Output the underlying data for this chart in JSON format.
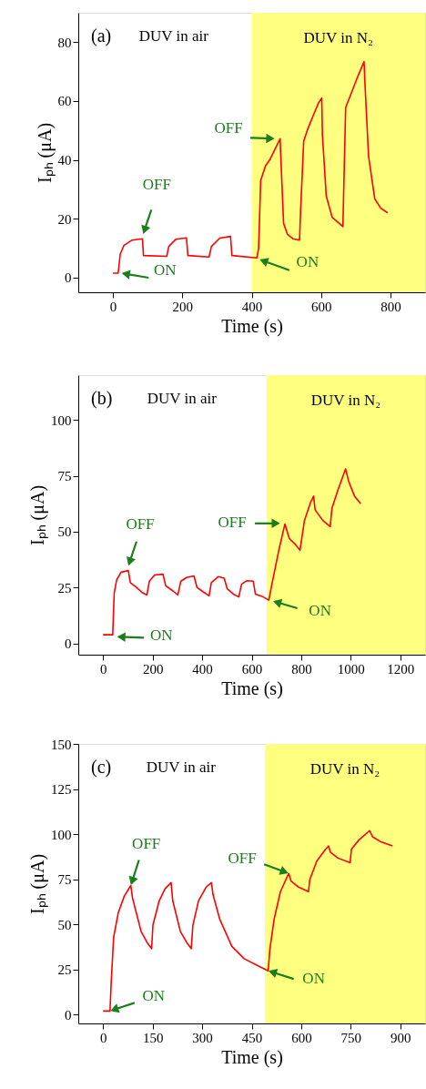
{
  "chart_data": [
    {
      "type": "line",
      "xlabel": "Time (s)",
      "ylabel": "Iₚₕ (μA)",
      "xlim": [
        -100,
        900
      ],
      "ylim": [
        -5,
        90
      ],
      "xticks": [
        0,
        200,
        400,
        600,
        800
      ],
      "yticks": [
        0,
        20,
        40,
        60,
        80
      ],
      "grid": false,
      "marker": "none",
      "line_style": "solid",
      "x": [
        0,
        15,
        21,
        32,
        54,
        85,
        88,
        155,
        161,
        181,
        212,
        216,
        277,
        284,
        308,
        339,
        343,
        415,
        420,
        426,
        440,
        453,
        482,
        484,
        492,
        503,
        519,
        538,
        541,
        550,
        562,
        580,
        593,
        602,
        604,
        615,
        632,
        663,
        665,
        671,
        685,
        702,
        724,
        727,
        737,
        755,
        772,
        792
      ],
      "series": [
        {
          "color": "#ff0000",
          "values": [
            1.5,
            1.5,
            8,
            11,
            12.7,
            13.2,
            7.5,
            7.2,
            10.6,
            13,
            13.5,
            7.5,
            7,
            10.6,
            13.4,
            14,
            7.5,
            6.7,
            10,
            33,
            38,
            40.2,
            47.2,
            41,
            18.4,
            14.7,
            13.2,
            12.7,
            22.5,
            46.4,
            50.6,
            55.8,
            59.4,
            61,
            48.5,
            27.7,
            20.5,
            17.3,
            27.7,
            57.8,
            62,
            67.2,
            73.4,
            65,
            41.2,
            26.7,
            23.6,
            22
          ]
        }
      ],
      "bands": [
        {
          "axis": "x",
          "from": 400,
          "to": 900,
          "label": "DUV in N₂",
          "color": "#ffff80"
        }
      ],
      "annotations": [
        "(a)",
        "DUV in air",
        {
          "text": "OFF",
          "x": 87,
          "y": 14.7
        },
        {
          "text": "ON",
          "x": 24,
          "y": 1.5
        },
        {
          "text": "OFF",
          "x": 467,
          "y": 47.2
        },
        {
          "text": "ON",
          "x": 422,
          "y": 6.2
        }
      ]
    },
    {
      "type": "line",
      "xlabel": "Time (s)",
      "ylabel": "Iₚₕ (μA)",
      "xlim": [
        -100,
        1300
      ],
      "ylim": [
        -5,
        120
      ],
      "xticks": [
        0,
        200,
        400,
        600,
        800,
        {
          "value": 1000,
          "label": "1000"
        },
        {
          "value": 1200,
          "label": "1200"
        }
      ],
      "yticks": [
        0,
        25,
        50,
        75,
        100
      ],
      "grid": false,
      "marker": "none",
      "line_style": "solid",
      "x": [
        0,
        39,
        45,
        55,
        73,
        102,
        110,
        135,
        159,
        177,
        187,
        208,
        242,
        253,
        282,
        302,
        314,
        337,
        367,
        379,
        404,
        428,
        437,
        465,
        489,
        501,
        526,
        548,
        559,
        581,
        606,
        615,
        642,
        669,
        679,
        709,
        734,
        752,
        777,
        795,
        813,
        838,
        850,
        856,
        887,
        917,
        924,
        948,
        979,
        991,
        1015,
        1040
      ],
      "series": [
        {
          "color": "#ff0000",
          "values": [
            3.9,
            3.9,
            22.4,
            28.5,
            31.9,
            32.6,
            27.2,
            25.1,
            22.7,
            21.7,
            27.9,
            30.6,
            31,
            25.8,
            23.5,
            21.7,
            27.9,
            29.5,
            30.2,
            25.1,
            23.1,
            21.3,
            27.2,
            29.9,
            29.2,
            24.5,
            22.1,
            20.8,
            26.5,
            28.1,
            27.9,
            22.1,
            21.1,
            19.4,
            25.1,
            41.4,
            53.4,
            46.9,
            44.2,
            41.7,
            55,
            63.2,
            65.9,
            59.8,
            55,
            52.3,
            60.5,
            68.6,
            78.1,
            72.7,
            65.9,
            62.5
          ]
        }
      ],
      "bands": [
        {
          "axis": "x",
          "from": 660,
          "to": 1300,
          "label": "DUV in N₂",
          "color": "#ffff80"
        }
      ],
      "annotations": [
        "(b)",
        "DUV in air",
        {
          "text": "OFF",
          "x": 102,
          "y": 34.6
        },
        {
          "text": "ON",
          "x": 55,
          "y": 3
        },
        {
          "text": "OFF",
          "x": 716,
          "y": 53.7
        },
        {
          "text": "ON",
          "x": 685,
          "y": 19
        }
      ]
    },
    {
      "type": "line",
      "xlabel": "Time (s)",
      "ylabel": "Iₚₕ (μA)",
      "xlim": [
        -75,
        975
      ],
      "ylim": [
        -5,
        150
      ],
      "xticks": [
        0,
        150,
        300,
        450,
        600,
        750,
        900
      ],
      "yticks": [
        0,
        25,
        50,
        75,
        100,
        125,
        150
      ],
      "grid": false,
      "marker": "none",
      "line_style": "solid",
      "x": [
        0,
        21,
        25,
        32,
        46,
        64,
        84,
        89,
        115,
        135,
        147,
        151,
        170,
        188,
        206,
        211,
        234,
        255,
        267,
        272,
        289,
        312,
        328,
        333,
        353,
        390,
        427,
        472,
        500,
        505,
        518,
        537,
        562,
        569,
        592,
        622,
        626,
        647,
        674,
        683,
        688,
        711,
        748,
        752,
        775,
        807,
        816,
        839,
        876
      ],
      "series": [
        {
          "color": "#ff0000",
          "values": [
            1.9,
            1.9,
            19,
            42.7,
            56.3,
            65.5,
            71.5,
            64.7,
            46.1,
            39.4,
            36.5,
            49.5,
            63,
            69.8,
            73.1,
            63,
            46.1,
            39.4,
            36.5,
            49.5,
            63,
            70.6,
            73.1,
            66.4,
            52.9,
            37.7,
            30.9,
            26.7,
            24.2,
            36,
            52.9,
            68.1,
            78.2,
            74,
            70.6,
            68.1,
            74.8,
            85,
            91.7,
            93.4,
            90,
            86.7,
            84.1,
            91.7,
            96.8,
            101.9,
            98.5,
            95.9,
            93.4
          ]
        }
      ],
      "bands": [
        {
          "axis": "x",
          "from": 490,
          "to": 975,
          "label": "DUV in N₂",
          "color": "#ffff80"
        }
      ],
      "annotations": [
        "(c)",
        "DUV in air",
        {
          "text": "OFF",
          "x": 84,
          "y": 71.5
        },
        {
          "text": "ON",
          "x": 21,
          "y": 1.9
        },
        {
          "text": "OFF",
          "x": 562,
          "y": 78.2
        },
        {
          "text": "ON",
          "x": 500,
          "y": 24.2
        }
      ]
    }
  ]
}
